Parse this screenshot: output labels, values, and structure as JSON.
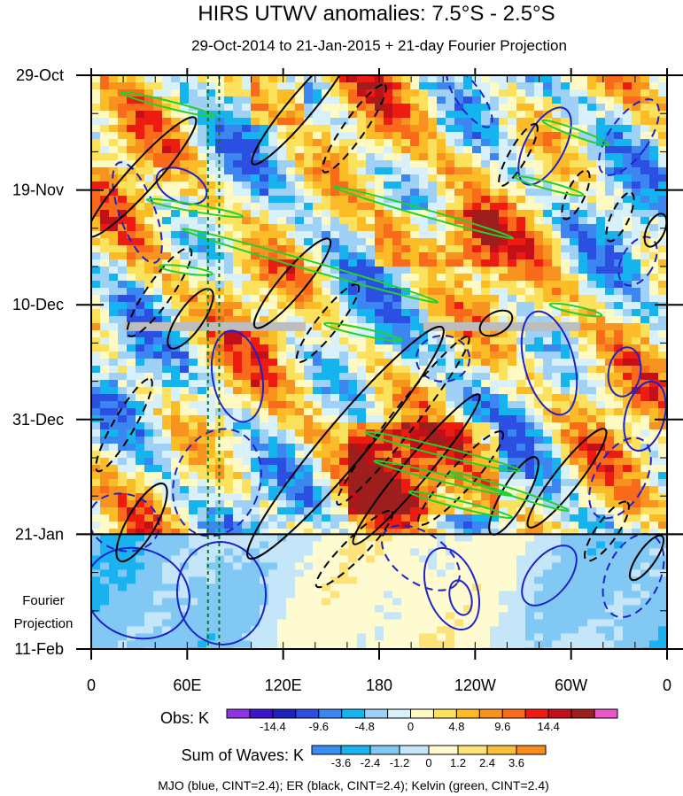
{
  "chart_data": {
    "type": "heatmap",
    "title": "HIRS UTWV anomalies: 7.5°S - 2.5°S",
    "subtitle": "29-Oct-2014 to 21-Jan-2015 + 21-day Fourier Projection",
    "x_ticks": [
      "0",
      "60E",
      "120E",
      "180",
      "120W",
      "60W",
      "0"
    ],
    "x_tick_lons": [
      0,
      60,
      120,
      180,
      240,
      300,
      360
    ],
    "y_ticks": [
      "29-Oct",
      "19-Nov",
      "10-Dec",
      "31-Dec",
      "21-Jan",
      "11-Feb"
    ],
    "y_tick_days": [
      0,
      21,
      42,
      63,
      84,
      105
    ],
    "projection_label": [
      "Fourier",
      "Projection"
    ],
    "obs_label": "Obs: K",
    "obs_colors": [
      "#8f34e0",
      "#3c14c9",
      "#1f22b8",
      "#2b4fe0",
      "#3b86f0",
      "#16b4ee",
      "#9fd0f5",
      "#d7f0fa",
      "#fff9c4",
      "#fce15d",
      "#fbbc28",
      "#f9931f",
      "#f96a1b",
      "#ed1b10",
      "#c30f17",
      "#9e1e1e",
      "#ea55c8"
    ],
    "obs_tick_labels": [
      "-14.4",
      "-9.6",
      "-4.8",
      "0",
      "4.8",
      "9.6",
      "14.4"
    ],
    "waves_label": "Sum of Waves: K",
    "waves_colors": [
      "#3a8ef3",
      "#1bb3ef",
      "#82c8f4",
      "#c4e6f8",
      "#fefbd0",
      "#fde27a",
      "#fbbf3a",
      "#f98c20"
    ],
    "waves_tick_labels": [
      "-3.6",
      "-2.4",
      "-1.2",
      "0",
      "1.2",
      "2.4",
      "3.6"
    ],
    "contour_note": "MJO (blue, CINT=2.4); ER (black, CINT=2.4); Kelvin (green, CINT=2.4)",
    "series": [
      {
        "name": "MJO",
        "color": "#1e22c8",
        "cint": 2.4
      },
      {
        "name": "ER",
        "color": "#000000",
        "cint": 2.4
      },
      {
        "name": "Kelvin",
        "color": "#22d12a",
        "cint": 2.4
      }
    ],
    "reference_lons": [
      73,
      80
    ],
    "day_range": [
      0,
      105
    ],
    "lon_range": [
      0,
      360
    ],
    "projection_start_day": 84,
    "missing_data_day": 46
  }
}
